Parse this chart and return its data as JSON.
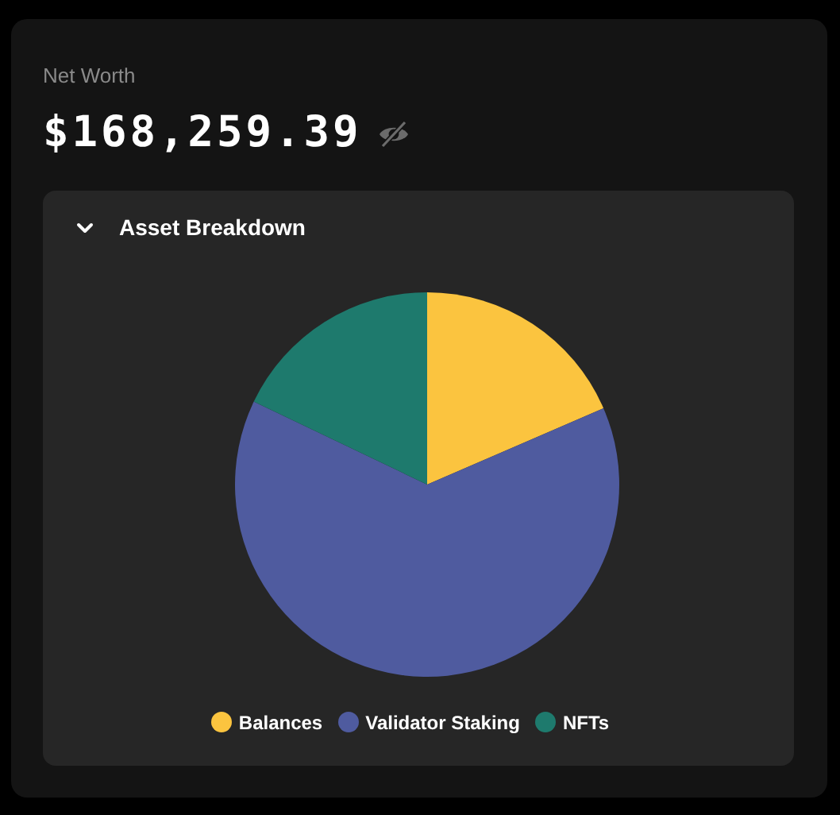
{
  "chart_data": {
    "type": "pie",
    "title": "Asset Breakdown",
    "annotations": [
      "Net Worth",
      "$168,259.39"
    ],
    "categories": [
      "Balances",
      "Validator Staking",
      "NFTs"
    ],
    "values": [
      18.5,
      63.6,
      17.9
    ],
    "colors": [
      "#fbc43f",
      "#4f5b9f",
      "#1e7a6d"
    ],
    "legend": "bottom"
  }
}
